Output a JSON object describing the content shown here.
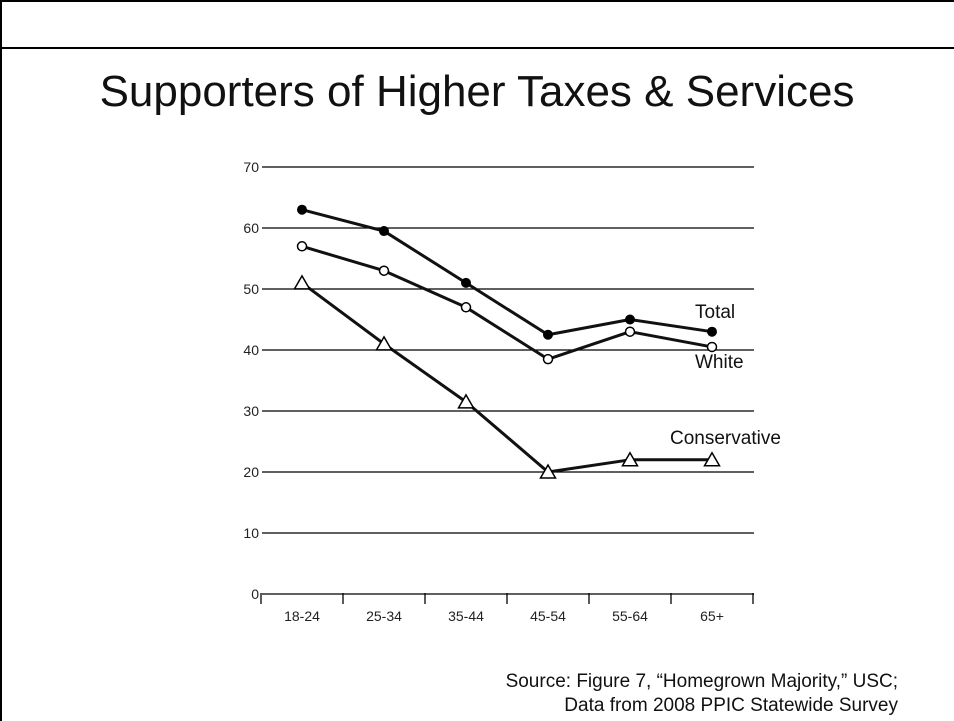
{
  "slide": {
    "title": "Supporters of Higher Taxes & Services",
    "source_line_1": "Source: Figure 7, “Homegrown Majority,” USC;",
    "source_line_2": "Data from 2008 PPIC Statewide Survey"
  },
  "chart_data": {
    "type": "line",
    "title": "",
    "xlabel": "",
    "ylabel": "",
    "categories": [
      "18-24",
      "25-34",
      "35-44",
      "45-54",
      "55-64",
      "65+"
    ],
    "ylim": [
      0,
      70
    ],
    "yticks": [
      0,
      10,
      20,
      30,
      40,
      50,
      60,
      70
    ],
    "grid": true,
    "legend": "inline labels at right end of each line",
    "series": [
      {
        "name": "Total",
        "marker": "filled-circle",
        "values": [
          63,
          59.5,
          51,
          42.5,
          45,
          43
        ]
      },
      {
        "name": "White",
        "marker": "open-circle",
        "values": [
          57,
          53,
          47,
          38.5,
          43,
          40.5
        ]
      },
      {
        "name": "Conservative",
        "marker": "open-triangle",
        "values": [
          51,
          41,
          31.5,
          20,
          22,
          22
        ]
      }
    ]
  }
}
